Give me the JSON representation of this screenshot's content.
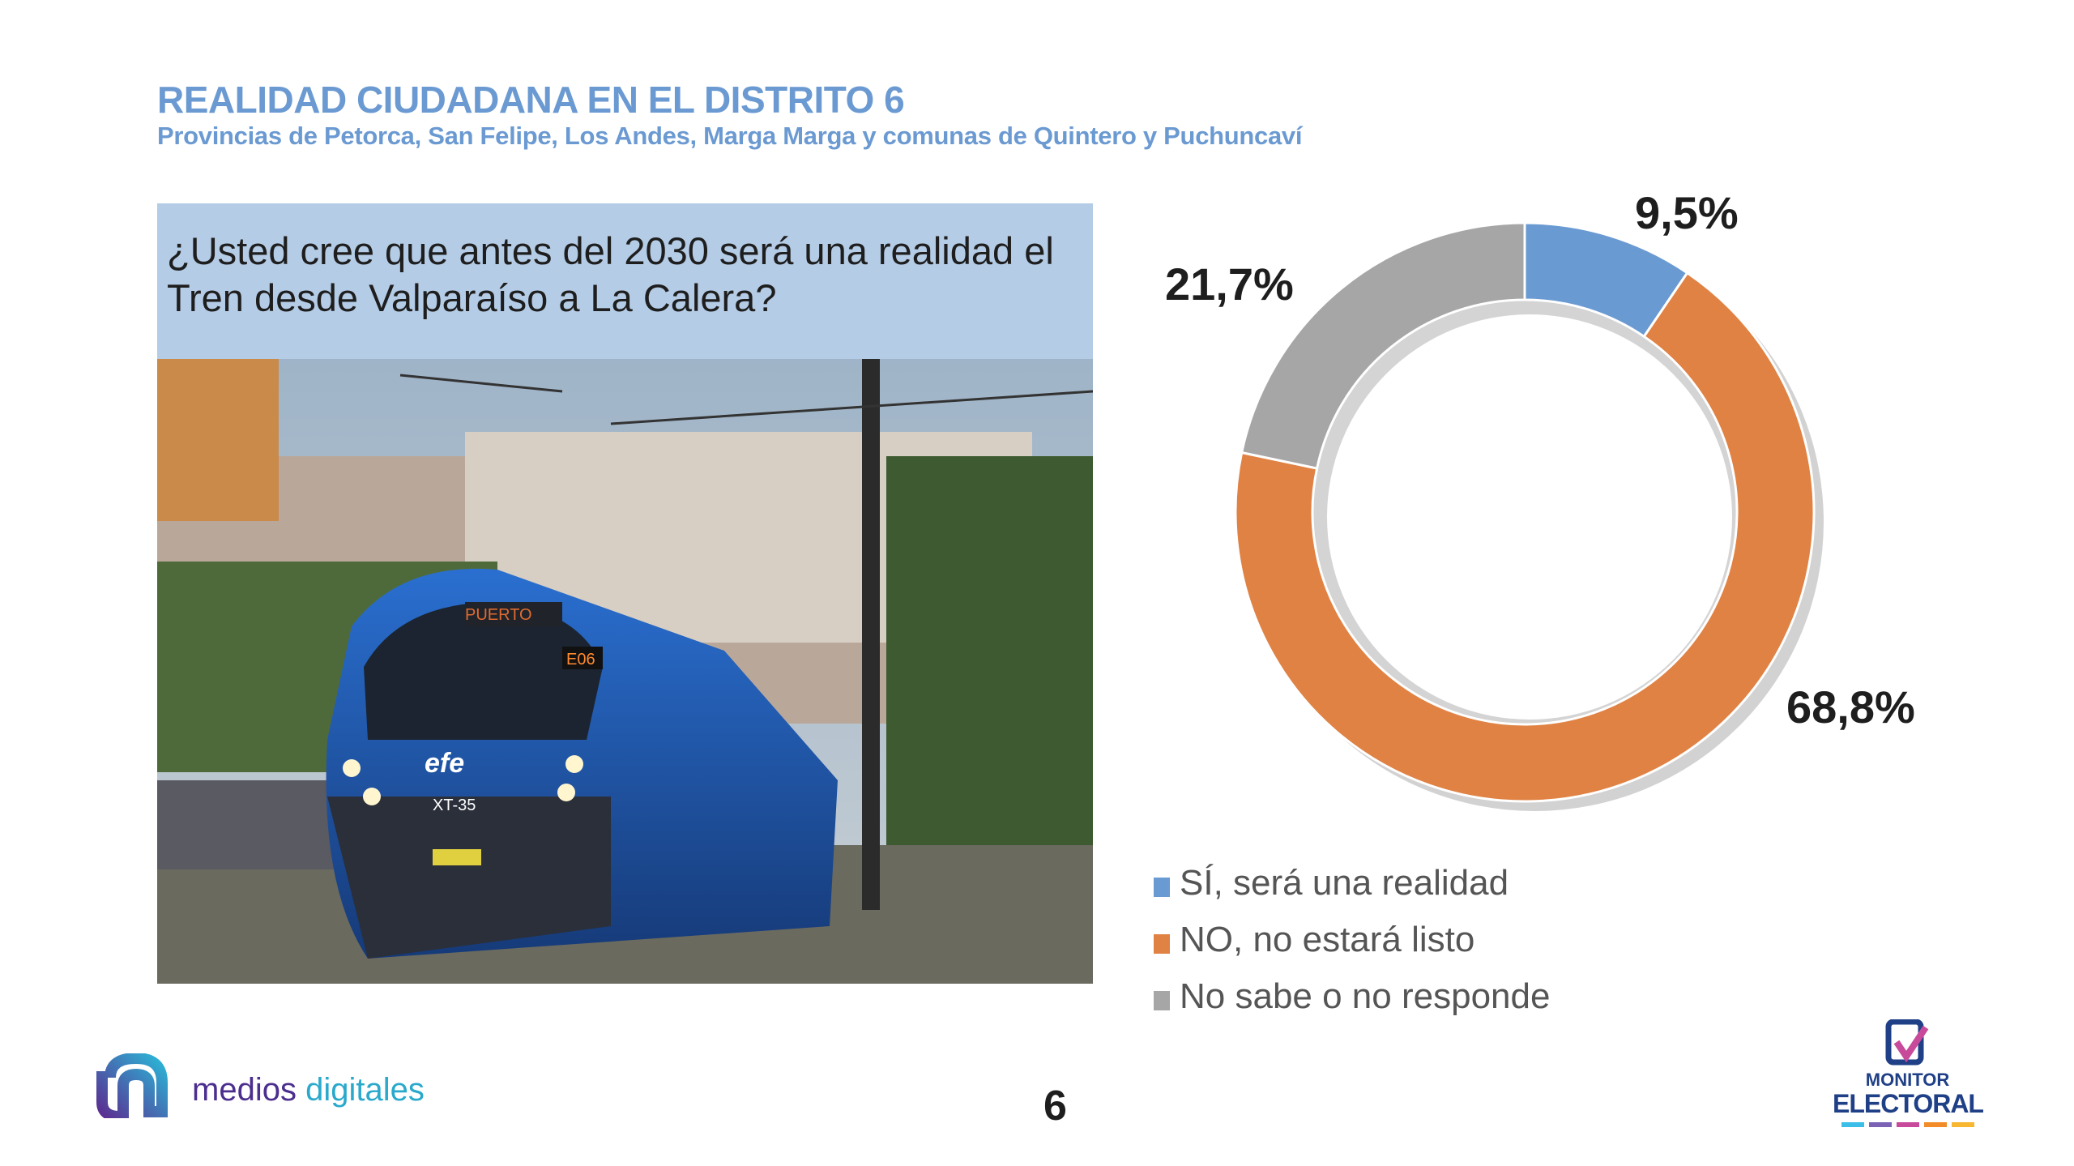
{
  "header": {
    "title": "REALIDAD CIUDADANA EN EL DISTRITO 6",
    "subtitle": "Provincias de Petorca, San Felipe, Los Andes, Marga Marga y comunas de Quintero y Puchuncaví"
  },
  "question": "¿Usted cree que antes del 2030 será una realidad el Tren desde Valparaíso a La Calera?",
  "photo": {
    "train_destination": "PUERTO",
    "train_route": "E06",
    "train_brand": "efe",
    "train_id": "XT-35"
  },
  "chart_data": {
    "type": "pie",
    "variant": "donut",
    "categories": [
      "SÍ, será una realidad",
      "NO, no estará listo",
      "No sabe o no responde"
    ],
    "values": [
      9.5,
      68.8,
      21.7
    ],
    "value_labels": [
      "9,5%",
      "68,8%",
      "21,7%"
    ],
    "colors": [
      "#6a9ad2",
      "#e08244",
      "#a6a6a6"
    ],
    "start": "top",
    "direction": "clockwise",
    "legend_position": "bottom-left"
  },
  "footer": {
    "logo_left": {
      "part1": "medios",
      "part2": "digitales"
    },
    "page_number": "6",
    "logo_right": {
      "line1": "MONITOR",
      "line2": "ELECTORAL"
    }
  }
}
